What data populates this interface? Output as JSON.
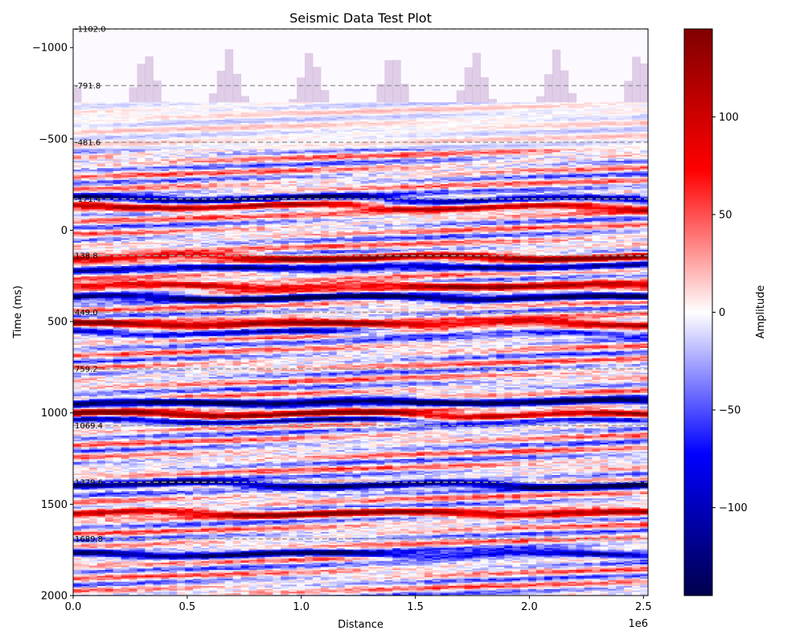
{
  "chart_data": {
    "type": "heatmap",
    "title": "Seismic Data Test Plot",
    "xlabel": "Distance",
    "ylabel": "Time (ms)",
    "x_offset_label": "1e6",
    "xlim": [
      0,
      2.52
    ],
    "ylim": [
      -1102,
      2000
    ],
    "y_inverted": true,
    "x_ticks": [
      0.0,
      0.5,
      1.0,
      1.5,
      2.0,
      2.5
    ],
    "x_tick_labels": [
      "0.0",
      "0.5",
      "1.0",
      "1.5",
      "2.0",
      "2.5"
    ],
    "y_ticks": [
      -1000,
      -500,
      0,
      500,
      1000,
      1500,
      2000
    ],
    "y_tick_labels": [
      "−1000",
      "−500",
      "0",
      "500",
      "1000",
      "1500",
      "2000"
    ],
    "horizon_values": [
      -1102.0,
      -791.8,
      -481.6,
      -171.4,
      138.8,
      449.0,
      759.2,
      1069.4,
      1379.6,
      1689.8
    ],
    "horizon_labels": [
      "-1102.0",
      "-791.8",
      "-481.6",
      "-171.4",
      "138.8",
      "449.0",
      "759.2",
      "1069.4",
      "1379.6",
      "1689.8"
    ],
    "colorbar": {
      "label": "Amplitude",
      "colormap": "seismic",
      "range": [
        -145,
        145
      ],
      "ticks": [
        -100,
        -50,
        0,
        50,
        100
      ],
      "tick_labels": [
        "−100",
        "−50",
        "0",
        "50",
        "100"
      ]
    },
    "strong_reflectors": [
      {
        "time": -175,
        "amplitude": -120
      },
      {
        "time": -130,
        "amplitude": 110
      },
      {
        "time": 145,
        "amplitude": 120
      },
      {
        "time": 200,
        "amplitude": -90
      },
      {
        "time": 300,
        "amplitude": 110
      },
      {
        "time": 365,
        "amplitude": -130
      },
      {
        "time": 510,
        "amplitude": 125
      },
      {
        "time": 560,
        "amplitude": -70
      },
      {
        "time": 940,
        "amplitude": -140
      },
      {
        "time": 1005,
        "amplitude": 135
      },
      {
        "time": 1040,
        "amplitude": -90
      },
      {
        "time": 1390,
        "amplitude": -140
      },
      {
        "time": 1545,
        "amplitude": 105
      },
      {
        "time": 1770,
        "amplitude": -110
      }
    ],
    "colors": {
      "negative": "#00004c",
      "zero": "#ffffff",
      "positive": "#800000",
      "horizon_line": "#9e9e9e"
    }
  }
}
